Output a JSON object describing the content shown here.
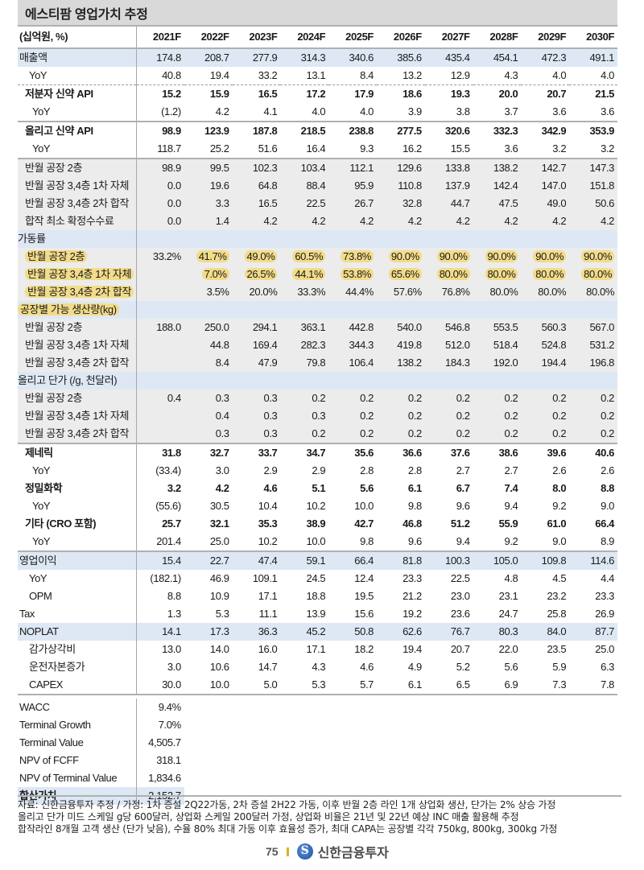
{
  "title": "에스티팜 영업가치 추정",
  "header": {
    "unit": "(십억원, %)",
    "years": [
      "2021F",
      "2022F",
      "2023F",
      "2024F",
      "2025F",
      "2026F",
      "2027F",
      "2028F",
      "2029F",
      "2030F"
    ]
  },
  "rows": [
    {
      "label": "매출액",
      "style": "major",
      "values": [
        "174.8",
        "208.7",
        "277.9",
        "314.3",
        "340.6",
        "385.6",
        "435.4",
        "454.1",
        "472.3",
        "491.1"
      ]
    },
    {
      "label": "YoY",
      "style": "yoy",
      "values": [
        "40.8",
        "19.4",
        "33.2",
        "13.1",
        "8.4",
        "13.2",
        "12.9",
        "4.3",
        "4.0",
        "4.0"
      ]
    },
    {
      "label": "저분자 신약 API",
      "style": "sub-bold",
      "values": [
        "15.2",
        "15.9",
        "16.5",
        "17.2",
        "17.9",
        "18.6",
        "19.3",
        "20.0",
        "20.7",
        "21.5"
      ]
    },
    {
      "label": "YoY",
      "style": "yoy2",
      "values": [
        "(1.2)",
        "4.2",
        "4.1",
        "4.0",
        "4.0",
        "3.9",
        "3.8",
        "3.7",
        "3.6",
        "3.6"
      ]
    },
    {
      "label": "올리고 신약 API",
      "style": "sub-bold",
      "values": [
        "98.9",
        "123.9",
        "187.8",
        "218.5",
        "238.8",
        "277.5",
        "320.6",
        "332.3",
        "342.9",
        "353.9"
      ]
    },
    {
      "label": "YoY",
      "style": "yoy2",
      "values": [
        "118.7",
        "25.2",
        "51.6",
        "16.4",
        "9.3",
        "16.2",
        "15.5",
        "3.6",
        "3.2",
        "3.2"
      ]
    },
    {
      "label": "반월 공장 2층",
      "style": "grey",
      "values": [
        "98.9",
        "99.5",
        "102.3",
        "103.4",
        "112.1",
        "129.6",
        "133.8",
        "138.2",
        "142.7",
        "147.3"
      ]
    },
    {
      "label": "반월 공장 3,4층 1차 자체",
      "style": "grey",
      "values": [
        "0.0",
        "19.6",
        "64.8",
        "88.4",
        "95.9",
        "110.8",
        "137.9",
        "142.4",
        "147.0",
        "151.8"
      ]
    },
    {
      "label": "반월 공장 3,4층 2차 합작",
      "style": "grey",
      "values": [
        "0.0",
        "3.3",
        "16.5",
        "22.5",
        "26.7",
        "32.8",
        "44.7",
        "47.5",
        "49.0",
        "50.6"
      ]
    },
    {
      "label": "합작 최소 확정수수료",
      "style": "grey",
      "values": [
        "0.0",
        "1.4",
        "4.2",
        "4.2",
        "4.2",
        "4.2",
        "4.2",
        "4.2",
        "4.2",
        "4.2"
      ]
    },
    {
      "label": "가동률",
      "style": "section",
      "values": [
        "",
        "",
        "",
        "",
        "",
        "",
        "",
        "",
        "",
        ""
      ]
    },
    {
      "label": "반월 공장 2층",
      "style": "grey",
      "label_hl": true,
      "values": [
        "33.2%",
        "41.7%",
        "49.0%",
        "60.5%",
        "73.8%",
        "90.0%",
        "90.0%",
        "90.0%",
        "90.0%",
        "90.0%"
      ],
      "hl": [
        false,
        true,
        true,
        true,
        true,
        true,
        true,
        true,
        true,
        true
      ]
    },
    {
      "label": "반월 공장 3,4층 1차 자체",
      "style": "grey",
      "label_hl": true,
      "values": [
        "",
        "7.0%",
        "26.5%",
        "44.1%",
        "53.8%",
        "65.6%",
        "80.0%",
        "80.0%",
        "80.0%",
        "80.0%"
      ],
      "hl": [
        false,
        true,
        true,
        true,
        true,
        true,
        true,
        true,
        true,
        true
      ]
    },
    {
      "label": "반월 공장 3,4층 2차 합작",
      "style": "grey",
      "label_hl": true,
      "values": [
        "",
        "3.5%",
        "20.0%",
        "33.3%",
        "44.4%",
        "57.6%",
        "76.8%",
        "80.0%",
        "80.0%",
        "80.0%"
      ]
    },
    {
      "label": "공장별 가능 생산량(kg)",
      "style": "section",
      "label_hl": true,
      "values": [
        "",
        "",
        "",
        "",
        "",
        "",
        "",
        "",
        "",
        ""
      ]
    },
    {
      "label": "반월 공장 2층",
      "style": "grey",
      "values": [
        "188.0",
        "250.0",
        "294.1",
        "363.1",
        "442.8",
        "540.0",
        "546.8",
        "553.5",
        "560.3",
        "567.0"
      ]
    },
    {
      "label": "반월 공장 3,4층 1차 자체",
      "style": "grey",
      "values": [
        "",
        "44.8",
        "169.4",
        "282.3",
        "344.3",
        "419.8",
        "512.0",
        "518.4",
        "524.8",
        "531.2"
      ]
    },
    {
      "label": "반월 공장 3,4층 2차 합작",
      "style": "grey",
      "values": [
        "",
        "8.4",
        "47.9",
        "79.8",
        "106.4",
        "138.2",
        "184.3",
        "192.0",
        "194.4",
        "196.8"
      ]
    },
    {
      "label": "올리고 단가 (/g, 천달러)",
      "style": "section",
      "values": [
        "",
        "",
        "",
        "",
        "",
        "",
        "",
        "",
        "",
        ""
      ]
    },
    {
      "label": "반월 공장 2층",
      "style": "grey",
      "values": [
        "0.4",
        "0.3",
        "0.3",
        "0.2",
        "0.2",
        "0.2",
        "0.2",
        "0.2",
        "0.2",
        "0.2"
      ]
    },
    {
      "label": "반월 공장 3,4층 1차 자체",
      "style": "grey",
      "values": [
        "",
        "0.4",
        "0.3",
        "0.3",
        "0.2",
        "0.2",
        "0.2",
        "0.2",
        "0.2",
        "0.2"
      ]
    },
    {
      "label": "반월 공장 3,4층 2차 합작",
      "style": "grey",
      "values": [
        "",
        "0.3",
        "0.3",
        "0.2",
        "0.2",
        "0.2",
        "0.2",
        "0.2",
        "0.2",
        "0.2"
      ]
    },
    {
      "label": "제네릭",
      "style": "sub-bold-top",
      "values": [
        "31.8",
        "32.7",
        "33.7",
        "34.7",
        "35.6",
        "36.6",
        "37.6",
        "38.6",
        "39.6",
        "40.6"
      ]
    },
    {
      "label": "YoY",
      "style": "yoy2",
      "values": [
        "(33.4)",
        "3.0",
        "2.9",
        "2.9",
        "2.8",
        "2.8",
        "2.7",
        "2.7",
        "2.6",
        "2.6"
      ]
    },
    {
      "label": "정밀화학",
      "style": "sub-bold",
      "values": [
        "3.2",
        "4.2",
        "4.6",
        "5.1",
        "5.6",
        "6.1",
        "6.7",
        "7.4",
        "8.0",
        "8.8"
      ]
    },
    {
      "label": "YoY",
      "style": "yoy2",
      "values": [
        "(55.6)",
        "30.5",
        "10.4",
        "10.2",
        "10.0",
        "9.8",
        "9.6",
        "9.4",
        "9.2",
        "9.0"
      ]
    },
    {
      "label": "기타 (CRO 포함)",
      "style": "sub-bold",
      "values": [
        "25.7",
        "32.1",
        "35.3",
        "38.9",
        "42.7",
        "46.8",
        "51.2",
        "55.9",
        "61.0",
        "66.4"
      ]
    },
    {
      "label": "YoY",
      "style": "yoy2",
      "values": [
        "201.4",
        "25.0",
        "10.2",
        "10.0",
        "9.8",
        "9.6",
        "9.4",
        "9.2",
        "9.0",
        "8.9"
      ]
    },
    {
      "label": "영업이익",
      "style": "major-top",
      "values": [
        "15.4",
        "22.7",
        "47.4",
        "59.1",
        "66.4",
        "81.8",
        "100.3",
        "105.0",
        "109.8",
        "114.6"
      ]
    },
    {
      "label": "YoY",
      "style": "yoy",
      "values": [
        "(182.1)",
        "46.9",
        "109.1",
        "24.5",
        "12.4",
        "23.3",
        "22.5",
        "4.8",
        "4.5",
        "4.4"
      ]
    },
    {
      "label": "OPM",
      "style": "yoy",
      "values": [
        "8.8",
        "10.9",
        "17.1",
        "18.8",
        "19.5",
        "21.2",
        "23.0",
        "23.1",
        "23.2",
        "23.3"
      ]
    },
    {
      "label": "Tax",
      "style": "plain",
      "values": [
        "1.3",
        "5.3",
        "11.1",
        "13.9",
        "15.6",
        "19.2",
        "23.6",
        "24.7",
        "25.8",
        "26.9"
      ]
    },
    {
      "label": "NOPLAT",
      "style": "major",
      "values": [
        "14.1",
        "17.3",
        "36.3",
        "45.2",
        "50.8",
        "62.6",
        "76.7",
        "80.3",
        "84.0",
        "87.7"
      ]
    },
    {
      "label": "감가상각비",
      "style": "yoy",
      "values": [
        "13.0",
        "14.0",
        "16.0",
        "17.1",
        "18.2",
        "19.4",
        "20.7",
        "22.0",
        "23.5",
        "25.0"
      ]
    },
    {
      "label": "운전자본증가",
      "style": "yoy",
      "values": [
        "3.0",
        "10.6",
        "14.7",
        "4.3",
        "4.6",
        "4.9",
        "5.2",
        "5.6",
        "5.9",
        "6.3"
      ]
    },
    {
      "label": "CAPEX",
      "style": "yoy-bottom",
      "values": [
        "30.0",
        "10.0",
        "5.0",
        "5.3",
        "5.7",
        "6.1",
        "6.5",
        "6.9",
        "7.3",
        "7.8"
      ]
    }
  ],
  "summary": [
    {
      "label": "WACC",
      "value": "9.4%"
    },
    {
      "label": "Terminal Growth",
      "value": "7.0%"
    },
    {
      "label": "Terminal Value",
      "value": "4,505.7"
    },
    {
      "label": "NPV of FCFF",
      "value": "318.1"
    },
    {
      "label": "NPV of Terminal Value",
      "value": "1,834.6"
    },
    {
      "label": "합산가치",
      "value": "2,152.7",
      "total": true
    }
  ],
  "notes": [
    "자료: 신한금융투자 추정 / 가정: 1차 증설 2Q22가동, 2차 증설 2H22 가동, 이후 반월 2층 라인 1개 상업화 생산, 단가는 2% 상승 가정",
    "올리고 단가 미드 스케일 g당 600달러, 상업화 스케일 200달러 가정, 상업화 비율은 21년 및 22년 예상 INC 매출 활용해 추정",
    "합작라인 8개월 고객 생산 (단가 낮음), 수율 80% 최대 가동 이후 효율성 증가, 최대 CAPA는 공장별 각각 750kg, 800kg, 300kg 가정"
  ],
  "footer": {
    "page_number": "75",
    "brand": "신한금융투자"
  },
  "colors": {
    "title_bg": "#d9d9d9",
    "section_bg": "#dde8f4",
    "grey_bg": "#ececec",
    "highlight": "#f2dc8a"
  }
}
